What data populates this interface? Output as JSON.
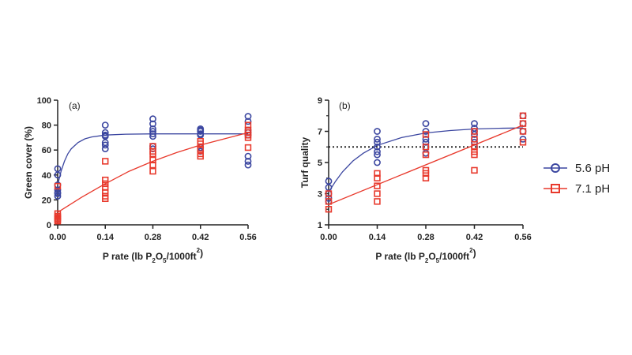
{
  "colors": {
    "series_a": "#3b46a0",
    "series_b": "#e8392c"
  },
  "legend": [
    {
      "label": "5.6 pH",
      "marker": "circle-icon"
    },
    {
      "label": "7.1 pH",
      "marker": "square-icon"
    }
  ],
  "chart_data": [
    {
      "type": "scatter",
      "panel_label": "(a)",
      "ylabel": "Green cover (%)",
      "xlabel": {
        "prefix": "P rate (lb P",
        "sub1": "2",
        "mid": "O",
        "sub2": "5",
        "after": "/1000ft",
        "sup": "2",
        "suffix": ")"
      },
      "x_ticks": [
        "0.00",
        "0.14",
        "0.28",
        "0.42",
        "0.56"
      ],
      "y_ticks": [
        "0",
        "20",
        "40",
        "60",
        "80",
        "100"
      ],
      "xlim": [
        0,
        0.56
      ],
      "ylim": [
        0,
        100
      ],
      "series": [
        {
          "name": "5.6 pH",
          "marker": "circle",
          "fit": "exponential-rise",
          "fit_points": [
            [
              0,
              32
            ],
            [
              0.01,
              43
            ],
            [
              0.02,
              51
            ],
            [
              0.03,
              57
            ],
            [
              0.04,
              61
            ],
            [
              0.06,
              66
            ],
            [
              0.08,
              69
            ],
            [
              0.1,
              70.5
            ],
            [
              0.14,
              72
            ],
            [
              0.2,
              72.7
            ],
            [
              0.28,
              73
            ],
            [
              0.42,
              73
            ],
            [
              0.56,
              73
            ]
          ],
          "points": [
            [
              0,
              45
            ],
            [
              0,
              40
            ],
            [
              0,
              32
            ],
            [
              0,
              28
            ],
            [
              0,
              26
            ],
            [
              0,
              25
            ],
            [
              0,
              23
            ],
            [
              0.14,
              80
            ],
            [
              0.14,
              74
            ],
            [
              0.14,
              72
            ],
            [
              0.14,
              71
            ],
            [
              0.14,
              66
            ],
            [
              0.14,
              64
            ],
            [
              0.14,
              61
            ],
            [
              0.28,
              85
            ],
            [
              0.28,
              81
            ],
            [
              0.28,
              77
            ],
            [
              0.28,
              75
            ],
            [
              0.28,
              73
            ],
            [
              0.28,
              71
            ],
            [
              0.28,
              63
            ],
            [
              0.28,
              61
            ],
            [
              0.42,
              77
            ],
            [
              0.42,
              76
            ],
            [
              0.42,
              75
            ],
            [
              0.42,
              73
            ],
            [
              0.42,
              72
            ],
            [
              0.42,
              62
            ],
            [
              0.42,
              59
            ],
            [
              0.56,
              87
            ],
            [
              0.56,
              83
            ],
            [
              0.56,
              76
            ],
            [
              0.56,
              74
            ],
            [
              0.56,
              72
            ],
            [
              0.56,
              55
            ],
            [
              0.56,
              51
            ],
            [
              0.56,
              48
            ]
          ]
        },
        {
          "name": "7.1 pH",
          "marker": "square",
          "fit": "quadratic",
          "fit_points": [
            [
              0,
              10
            ],
            [
              0.07,
              22
            ],
            [
              0.14,
              33
            ],
            [
              0.21,
              43
            ],
            [
              0.28,
              51
            ],
            [
              0.35,
              58
            ],
            [
              0.42,
              64
            ],
            [
              0.49,
              69
            ],
            [
              0.56,
              74
            ]
          ],
          "points": [
            [
              0,
              31
            ],
            [
              0,
              9
            ],
            [
              0,
              7
            ],
            [
              0,
              6
            ],
            [
              0,
              5
            ],
            [
              0,
              4
            ],
            [
              0,
              3
            ],
            [
              0.14,
              51
            ],
            [
              0.14,
              36
            ],
            [
              0.14,
              33
            ],
            [
              0.14,
              30
            ],
            [
              0.14,
              26
            ],
            [
              0.14,
              23
            ],
            [
              0.14,
              21
            ],
            [
              0.28,
              63
            ],
            [
              0.28,
              59
            ],
            [
              0.28,
              57
            ],
            [
              0.28,
              52
            ],
            [
              0.28,
              48
            ],
            [
              0.28,
              43
            ],
            [
              0.42,
              67
            ],
            [
              0.42,
              65
            ],
            [
              0.42,
              60
            ],
            [
              0.42,
              57
            ],
            [
              0.42,
              55
            ],
            [
              0.56,
              80
            ],
            [
              0.56,
              76
            ],
            [
              0.56,
              74
            ],
            [
              0.56,
              72
            ],
            [
              0.56,
              70
            ],
            [
              0.56,
              62
            ]
          ]
        }
      ]
    },
    {
      "type": "scatter",
      "panel_label": "(b)",
      "ylabel": "Turf quality",
      "xlabel": {
        "prefix": "P rate (lb P",
        "sub1": "2",
        "mid": "O",
        "sub2": "5",
        "after": "/1000ft",
        "sup": "2",
        "suffix": ")"
      },
      "x_ticks": [
        "0.00",
        "0.14",
        "0.28",
        "0.42",
        "0.56"
      ],
      "y_ticks": [
        "1",
        "3",
        "5",
        "7",
        "9"
      ],
      "xlim": [
        0,
        0.56
      ],
      "ylim": [
        1,
        9
      ],
      "reference_line": {
        "y": 6,
        "style": "dotted"
      },
      "series": [
        {
          "name": "5.6 pH",
          "marker": "circle",
          "fit": "exponential-rise",
          "fit_points": [
            [
              0,
              3.1
            ],
            [
              0.02,
              3.8
            ],
            [
              0.04,
              4.4
            ],
            [
              0.07,
              5.1
            ],
            [
              0.1,
              5.6
            ],
            [
              0.14,
              6.1
            ],
            [
              0.21,
              6.6
            ],
            [
              0.28,
              6.9
            ],
            [
              0.35,
              7.05
            ],
            [
              0.42,
              7.15
            ],
            [
              0.49,
              7.2
            ],
            [
              0.56,
              7.22
            ]
          ],
          "points": [
            [
              0,
              3.8
            ],
            [
              0,
              3.4
            ],
            [
              0,
              3.0
            ],
            [
              0,
              2.7
            ],
            [
              0,
              2.5
            ],
            [
              0.14,
              7.0
            ],
            [
              0.14,
              6.5
            ],
            [
              0.14,
              6.3
            ],
            [
              0.14,
              6.0
            ],
            [
              0.14,
              5.7
            ],
            [
              0.14,
              5.5
            ],
            [
              0.14,
              5.0
            ],
            [
              0.28,
              7.5
            ],
            [
              0.28,
              7.0
            ],
            [
              0.28,
              6.5
            ],
            [
              0.28,
              6.3
            ],
            [
              0.28,
              6.0
            ],
            [
              0.28,
              5.6
            ],
            [
              0.42,
              7.5
            ],
            [
              0.42,
              7.2
            ],
            [
              0.42,
              7.0
            ],
            [
              0.42,
              6.8
            ],
            [
              0.42,
              6.5
            ],
            [
              0.42,
              6.3
            ],
            [
              0.42,
              6.0
            ],
            [
              0.56,
              8.0
            ],
            [
              0.56,
              7.5
            ],
            [
              0.56,
              7.0
            ],
            [
              0.56,
              6.5
            ]
          ]
        },
        {
          "name": "7.1 pH",
          "marker": "square",
          "fit": "linear",
          "fit_points": [
            [
              0,
              2.3
            ],
            [
              0.56,
              7.4
            ]
          ],
          "points": [
            [
              0,
              2.0
            ],
            [
              0,
              2.5
            ],
            [
              0,
              3.0
            ],
            [
              0.14,
              4.3
            ],
            [
              0.14,
              4.0
            ],
            [
              0.14,
              3.5
            ],
            [
              0.14,
              3.0
            ],
            [
              0.14,
              2.5
            ],
            [
              0.28,
              6.8
            ],
            [
              0.28,
              6.0
            ],
            [
              0.28,
              5.5
            ],
            [
              0.28,
              4.5
            ],
            [
              0.28,
              4.3
            ],
            [
              0.28,
              4.0
            ],
            [
              0.42,
              7.0
            ],
            [
              0.42,
              6.5
            ],
            [
              0.42,
              6.0
            ],
            [
              0.42,
              5.7
            ],
            [
              0.42,
              5.5
            ],
            [
              0.42,
              4.5
            ],
            [
              0.56,
              8.0
            ],
            [
              0.56,
              7.5
            ],
            [
              0.56,
              7.0
            ],
            [
              0.56,
              6.3
            ]
          ]
        }
      ]
    }
  ]
}
